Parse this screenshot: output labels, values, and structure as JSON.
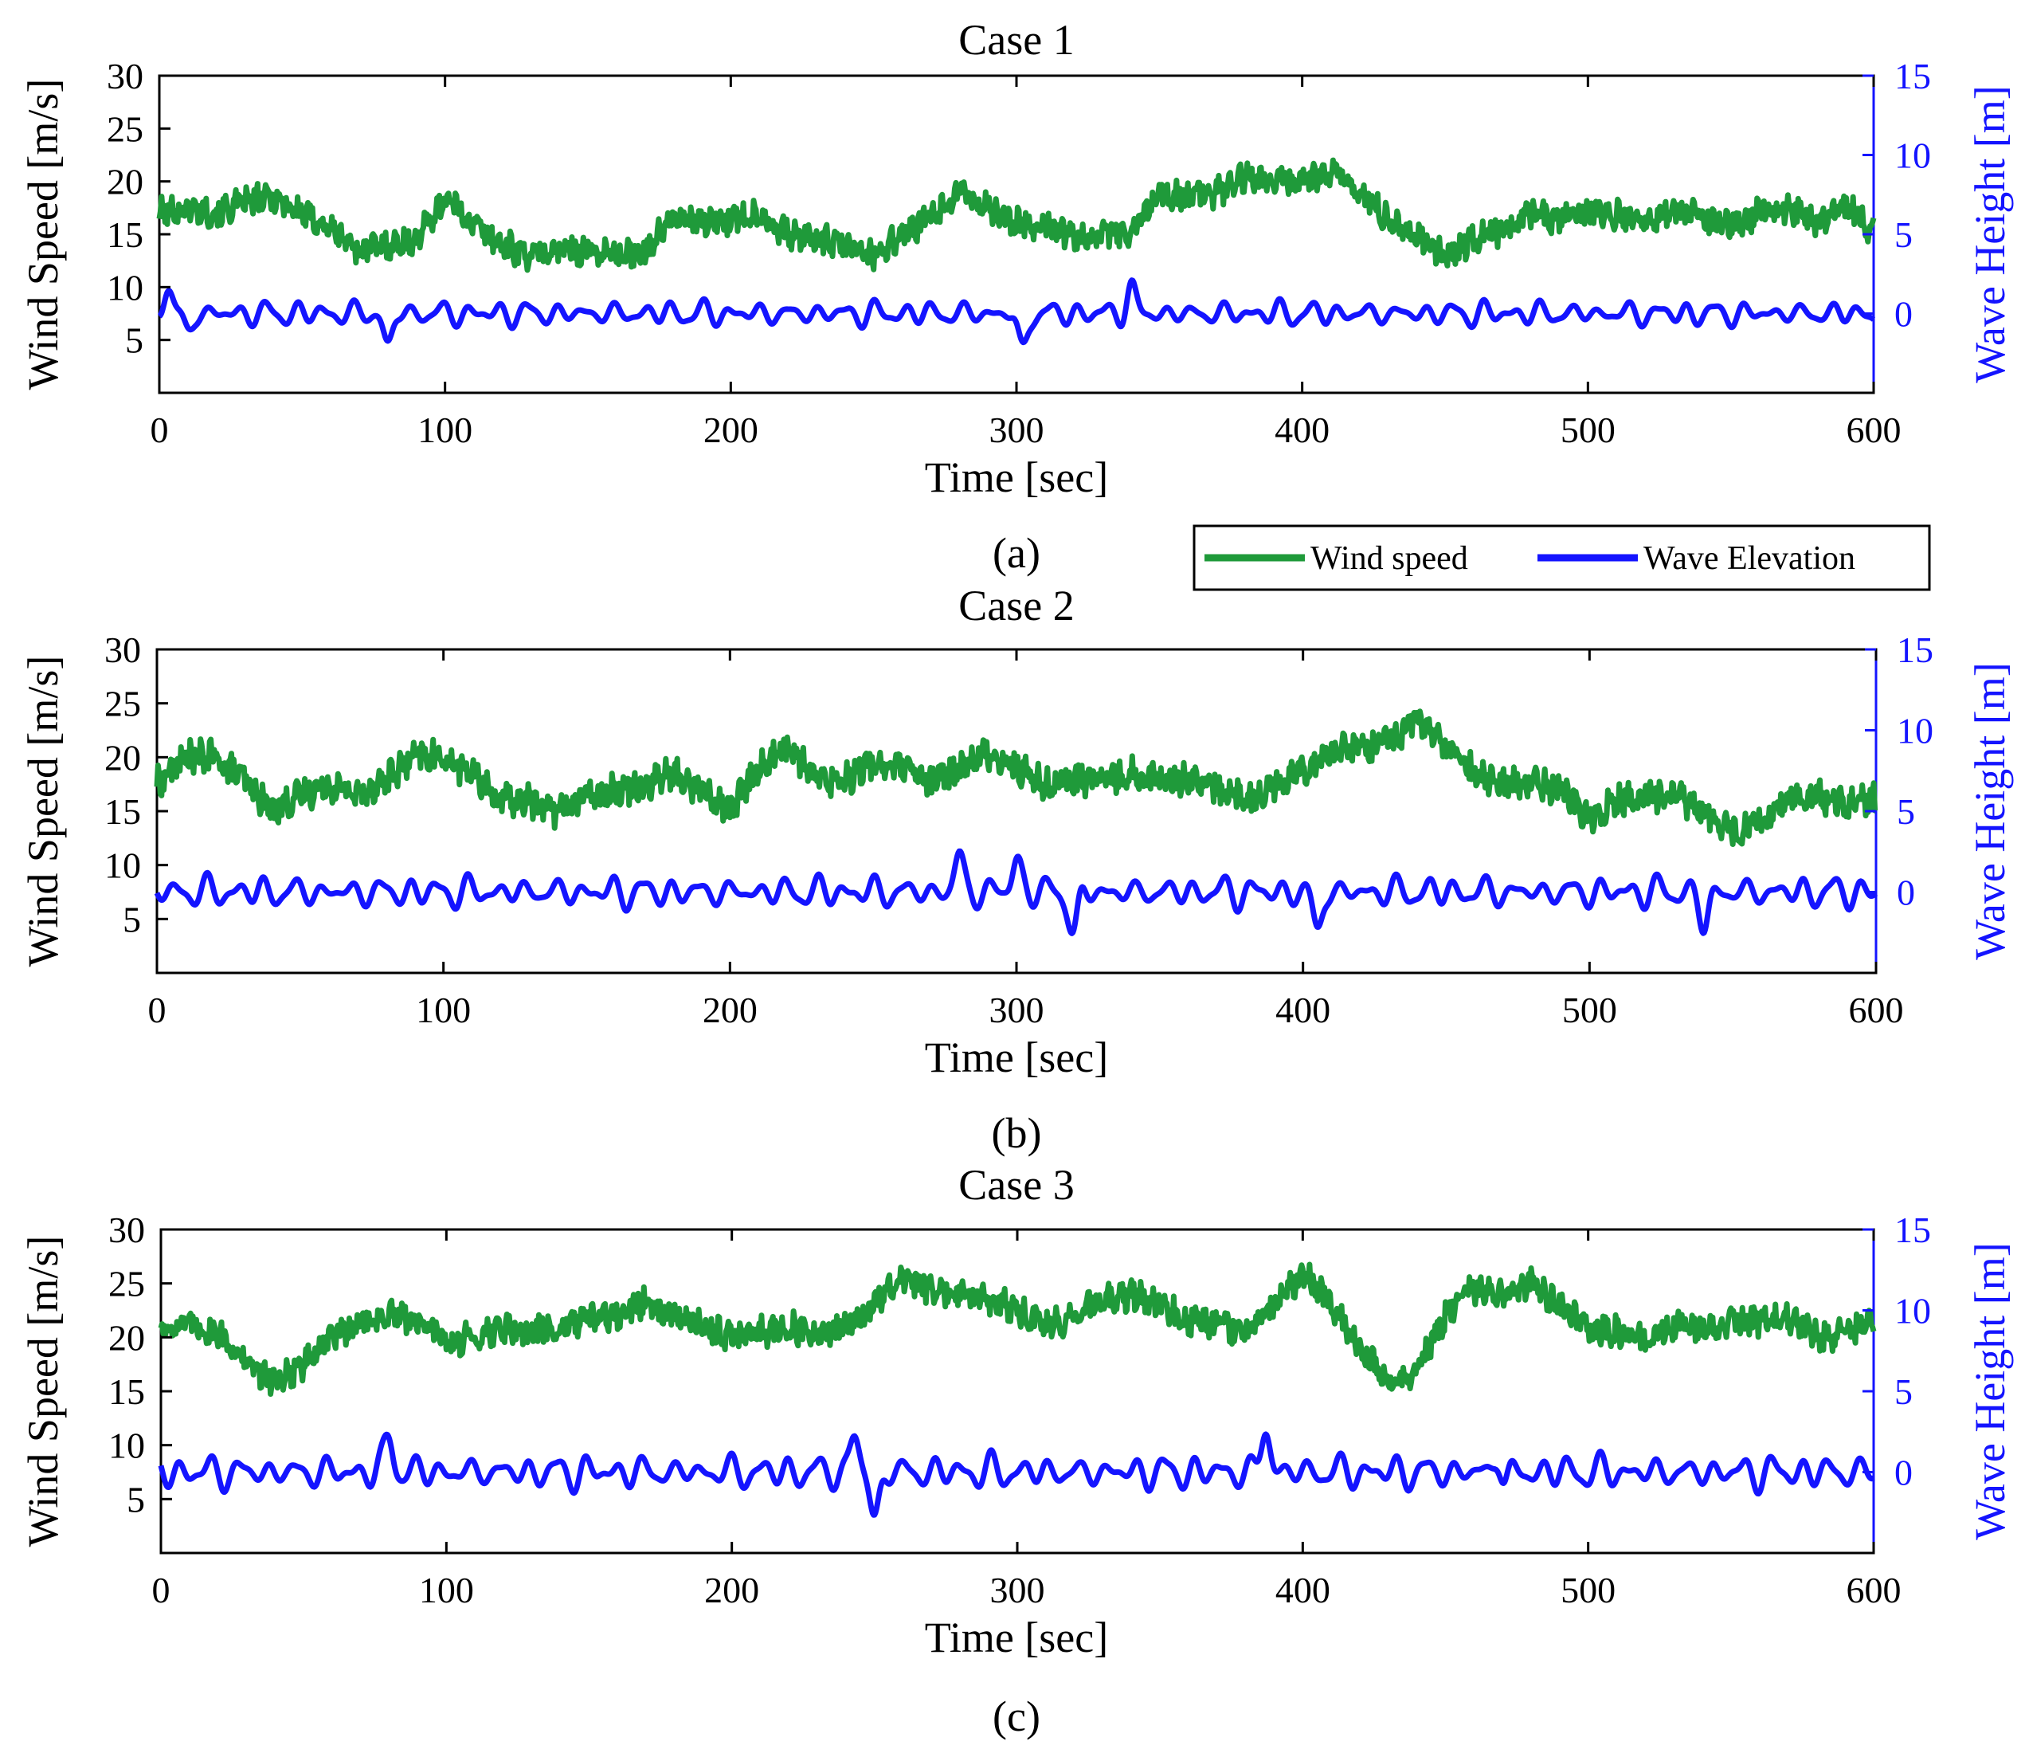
{
  "colors": {
    "wind": "#1f9a3a",
    "wave": "#1414ff",
    "axis": "#000000"
  },
  "legend": {
    "wind_label": "Wind speed",
    "wave_label": "Wave Elevation",
    "placement": "between panels (a) and (b), right"
  },
  "chart_data": [
    {
      "type": "line",
      "title": "Case 1",
      "caption": "(a)",
      "xlabel": "Time [sec]",
      "ylabel": "Wind Speed [m/s]",
      "y2label": "Wave Height [m]",
      "xlim": [
        0,
        600
      ],
      "ylim": [
        0,
        30
      ],
      "y2lim": [
        -5,
        15
      ],
      "xticks": [
        0,
        100,
        200,
        300,
        400,
        500,
        600
      ],
      "yticks": [
        5,
        10,
        15,
        20,
        25,
        30
      ],
      "y2ticks": [
        0,
        5,
        10,
        15
      ],
      "x": [
        0,
        10,
        20,
        30,
        40,
        50,
        60,
        70,
        80,
        90,
        100,
        110,
        120,
        130,
        140,
        150,
        160,
        170,
        180,
        190,
        200,
        210,
        220,
        230,
        240,
        250,
        260,
        270,
        280,
        290,
        300,
        310,
        320,
        330,
        340,
        350,
        360,
        370,
        380,
        390,
        400,
        410,
        420,
        430,
        440,
        450,
        460,
        470,
        480,
        490,
        500,
        510,
        520,
        530,
        540,
        550,
        560,
        570,
        580,
        590,
        600
      ],
      "series": [
        {
          "name": "Wind speed",
          "axis": "left",
          "values": [
            17,
            17.5,
            17,
            18,
            18.5,
            17,
            15.5,
            13.5,
            14,
            14.5,
            18.5,
            16,
            14,
            13,
            13.5,
            13.5,
            13,
            13.5,
            16.5,
            16,
            16.5,
            17,
            15,
            14.5,
            14,
            13,
            15,
            16.5,
            19,
            17.5,
            16,
            16,
            15,
            15,
            15,
            19,
            18.5,
            19,
            20.5,
            20,
            20,
            21,
            19,
            16.5,
            15,
            13,
            14.5,
            15.5,
            17,
            16.5,
            17,
            17,
            16.5,
            17.5,
            16.5,
            16,
            17,
            17.5,
            16,
            18,
            15
          ],
          "noise": 1.2
        },
        {
          "name": "Wave Elevation",
          "axis": "right",
          "base": 0,
          "amp": 0.9,
          "peaks": [
            [
              3,
              1.6
            ],
            [
              80,
              -2.0
            ],
            [
              302,
              -2.3
            ],
            [
              340,
              1.6
            ],
            [
              10,
              -1.1
            ]
          ]
        }
      ]
    },
    {
      "type": "line",
      "title": "Case 2",
      "caption": "(b)",
      "xlabel": "Time [sec]",
      "ylabel": "Wind Speed [m/s]",
      "y2label": "Wave Height [m]",
      "xlim": [
        0,
        600
      ],
      "ylim": [
        0,
        30
      ],
      "y2lim": [
        -5,
        15
      ],
      "xticks": [
        0,
        100,
        200,
        300,
        400,
        500,
        600
      ],
      "yticks": [
        5,
        10,
        15,
        20,
        25,
        30
      ],
      "y2ticks": [
        0,
        5,
        10,
        15
      ],
      "x": [
        0,
        10,
        20,
        30,
        40,
        50,
        60,
        70,
        80,
        90,
        100,
        110,
        120,
        130,
        140,
        150,
        160,
        170,
        180,
        190,
        200,
        210,
        220,
        230,
        240,
        250,
        260,
        270,
        280,
        290,
        300,
        310,
        320,
        330,
        340,
        350,
        360,
        370,
        380,
        390,
        400,
        410,
        420,
        430,
        440,
        450,
        460,
        470,
        480,
        490,
        500,
        510,
        520,
        530,
        540,
        550,
        560,
        570,
        580,
        590,
        600
      ],
      "series": [
        {
          "name": "Wind speed",
          "axis": "left",
          "values": [
            17.5,
            20,
            20,
            18,
            15,
            16.5,
            17.5,
            16.5,
            18,
            20,
            20,
            18.5,
            16,
            16,
            15,
            16.5,
            17,
            17.5,
            18.5,
            17,
            15,
            19,
            21,
            18,
            18,
            19.5,
            19,
            17.5,
            19,
            20.5,
            19,
            17.5,
            18,
            18,
            18.5,
            18,
            18,
            17,
            16,
            17.5,
            19,
            20.5,
            21,
            21.5,
            23.5,
            21,
            18.5,
            17.5,
            17.5,
            17,
            14.5,
            16,
            16.5,
            16.5,
            15,
            13,
            14,
            16,
            16.5,
            15.5,
            16
          ],
          "noise": 1.3
        },
        {
          "name": "Wave Elevation",
          "axis": "right",
          "base": 0,
          "amp": 1.1,
          "peaks": [
            [
              280,
              2.2
            ],
            [
              320,
              -2.5
            ],
            [
              300,
              2.1
            ],
            [
              405,
              -2.3
            ],
            [
              540,
              -2.1
            ]
          ]
        }
      ]
    },
    {
      "type": "line",
      "title": "Case 3",
      "caption": "(c)",
      "xlabel": "Time [sec]",
      "ylabel": "Wind Speed [m/s]",
      "y2label": "Wave Height [m]",
      "xlim": [
        0,
        600
      ],
      "ylim": [
        0,
        30
      ],
      "y2lim": [
        -5,
        15
      ],
      "xticks": [
        0,
        100,
        200,
        300,
        400,
        500,
        600
      ],
      "yticks": [
        5,
        10,
        15,
        20,
        25,
        30
      ],
      "y2ticks": [
        0,
        5,
        10,
        15
      ],
      "x": [
        0,
        10,
        20,
        30,
        40,
        50,
        60,
        70,
        80,
        90,
        100,
        110,
        120,
        130,
        140,
        150,
        160,
        170,
        180,
        190,
        200,
        210,
        220,
        230,
        240,
        250,
        260,
        270,
        280,
        290,
        300,
        310,
        320,
        330,
        340,
        350,
        360,
        370,
        380,
        390,
        400,
        410,
        420,
        430,
        440,
        450,
        460,
        470,
        480,
        490,
        500,
        510,
        520,
        530,
        540,
        550,
        560,
        570,
        580,
        590,
        600
      ],
      "series": [
        {
          "name": "Wind speed",
          "axis": "left",
          "values": [
            21,
            21,
            20.5,
            17.5,
            16,
            17.5,
            20,
            21.5,
            22,
            21.5,
            19.5,
            20,
            21,
            20.5,
            21,
            21.5,
            22,
            23.5,
            22,
            21,
            20,
            20.5,
            21,
            20,
            21,
            23,
            25.5,
            24.5,
            24,
            23.5,
            22.5,
            21,
            22,
            23.5,
            24,
            23,
            21.5,
            21,
            20.5,
            23,
            26,
            23,
            19,
            16,
            17,
            22,
            24.5,
            24,
            25,
            23,
            21,
            20.5,
            20,
            21,
            21,
            21.5,
            21.5,
            22,
            20,
            20.5,
            21.5
          ],
          "noise": 1.2
        },
        {
          "name": "Wave Elevation",
          "axis": "right",
          "base": 0,
          "amp": 1.2,
          "peaks": [
            [
              80,
              2.1
            ],
            [
              250,
              -2.9
            ],
            [
              243,
              2.3
            ],
            [
              387,
              2.7
            ],
            [
              469,
              2.2
            ],
            [
              470,
              -2.0
            ]
          ]
        }
      ]
    }
  ]
}
